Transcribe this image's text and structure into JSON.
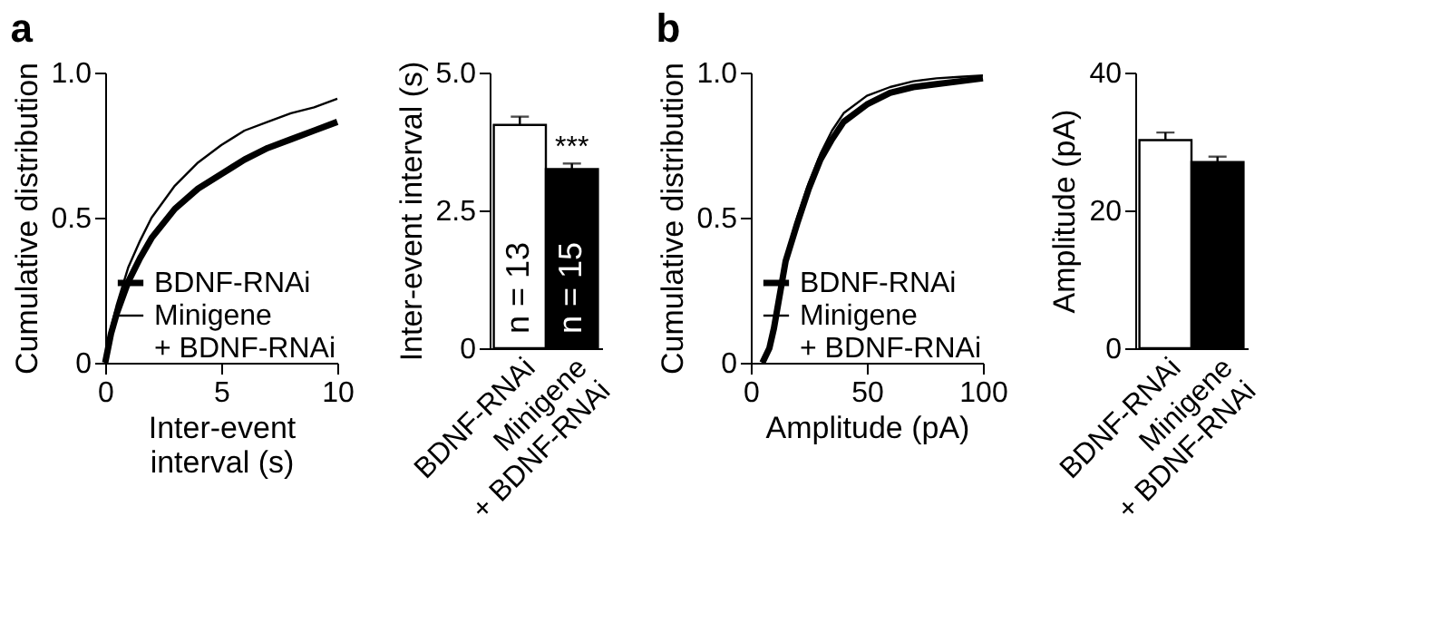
{
  "chart_data": [
    {
      "type": "line",
      "title": "a",
      "xlabel": "Inter-event\ninterval (s)",
      "ylabel": "Cumulative distribution",
      "xlim": [
        0,
        10
      ],
      "xticks": [
        0,
        5,
        10
      ],
      "ylim": [
        0,
        1
      ],
      "yticks": [
        0,
        {
          "value": 0.5,
          "label": "0.5"
        },
        {
          "value": 1,
          "label": "1.0"
        }
      ],
      "grid": false,
      "legend": "bottom right",
      "x": [
        0,
        0.25,
        0.5,
        1,
        1.5,
        2,
        3,
        4,
        5,
        6,
        7,
        8,
        9,
        10
      ],
      "series": [
        {
          "name": "BDNF-RNAi",
          "color": "#000000",
          "values": [
            0,
            0.1,
            0.17,
            0.28,
            0.36,
            0.43,
            0.53,
            0.6,
            0.65,
            0.7,
            0.74,
            0.77,
            0.8,
            0.83
          ]
        },
        {
          "name": "Minigene\n+ BDNF-RNAi",
          "color": "#000000",
          "values": [
            0,
            0.12,
            0.2,
            0.33,
            0.42,
            0.5,
            0.61,
            0.69,
            0.75,
            0.8,
            0.83,
            0.86,
            0.88,
            0.91
          ]
        }
      ]
    },
    {
      "type": "bar",
      "ylabel": "Inter-event interval (s)",
      "categories": [
        "BDNF-RNAi",
        "Minigene\n+ BDNF-RNAi"
      ],
      "values": [
        4.05,
        3.25
      ],
      "errors": [
        0.15,
        0.1
      ],
      "colors": [
        "#ffffff",
        "#000000"
      ],
      "ylim": [
        0,
        5
      ],
      "yticks": [
        0,
        {
          "value": 2.5,
          "label": "2.5"
        },
        {
          "value": 5,
          "label": "5.0"
        }
      ],
      "grid": false,
      "annotations": [
        "n = 13",
        "n = 15",
        "***"
      ]
    },
    {
      "type": "line",
      "title": "b",
      "xlabel": "Amplitude (pA)",
      "ylabel": "Cumulative distribution",
      "xlim": [
        0,
        100
      ],
      "xticks": [
        0,
        50,
        100
      ],
      "ylim": [
        0,
        1
      ],
      "yticks": [
        0,
        {
          "value": 0.5,
          "label": "0.5"
        },
        {
          "value": 1,
          "label": "1.0"
        }
      ],
      "grid": false,
      "legend": "bottom right",
      "x": [
        5,
        8,
        10,
        15,
        20,
        25,
        30,
        35,
        40,
        50,
        60,
        70,
        80,
        90,
        100
      ],
      "series": [
        {
          "name": "BDNF-RNAi",
          "color": "#000000",
          "values": [
            0,
            0.05,
            0.12,
            0.35,
            0.48,
            0.6,
            0.7,
            0.77,
            0.83,
            0.89,
            0.93,
            0.95,
            0.96,
            0.97,
            0.98
          ]
        },
        {
          "name": "Minigene\n+ BDNF-RNAi",
          "color": "#000000",
          "values": [
            0,
            0.05,
            0.12,
            0.36,
            0.5,
            0.62,
            0.72,
            0.8,
            0.86,
            0.92,
            0.95,
            0.97,
            0.98,
            0.985,
            0.99
          ]
        }
      ]
    },
    {
      "type": "bar",
      "ylabel": "Amplitude (pA)",
      "categories": [
        "BDNF-RNAi",
        "Minigene\n+ BDNF-RNAi"
      ],
      "values": [
        30.2,
        27
      ],
      "errors": [
        1.1,
        0.8
      ],
      "colors": [
        "#ffffff",
        "#000000"
      ],
      "ylim": [
        0,
        40
      ],
      "yticks": [
        0,
        20,
        40
      ],
      "grid": false
    }
  ]
}
